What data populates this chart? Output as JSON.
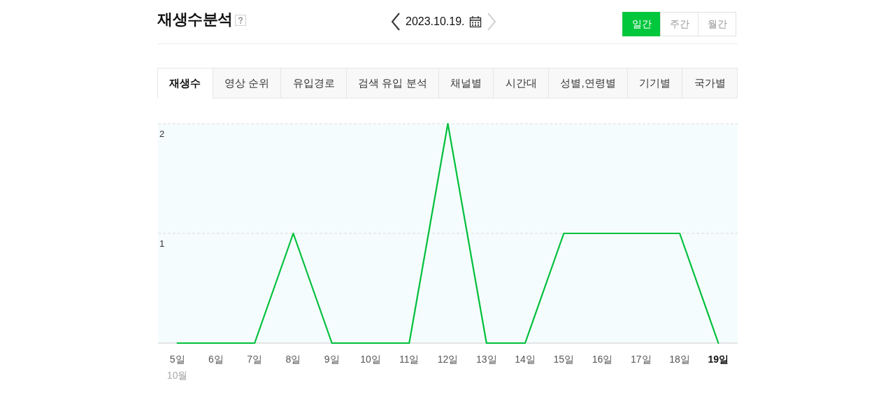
{
  "chart_data": {
    "type": "line",
    "title": "재생수분석",
    "subtitle": "2023.10.19.",
    "categories": [
      "5일",
      "6일",
      "7일",
      "8일",
      "9일",
      "10일",
      "11일",
      "12일",
      "13일",
      "14일",
      "15일",
      "16일",
      "17일",
      "18일",
      "19일"
    ],
    "xlabel": "10월",
    "series": [
      {
        "color": "#00c03c",
        "values": [
          0,
          0,
          0,
          1,
          0,
          0,
          0,
          2,
          0,
          0,
          1,
          1,
          1,
          1,
          0
        ]
      }
    ],
    "ylim": [
      0,
      2
    ],
    "yticks": [
      1,
      2
    ],
    "grid": "y",
    "annotations": [
      "일간",
      "주간",
      "월간",
      "재생수",
      "영상 순위",
      "유입경로",
      "검색 유입 분석",
      "채널별",
      "시간대",
      "성별,연령별",
      "기기별",
      "국가별"
    ]
  }
}
